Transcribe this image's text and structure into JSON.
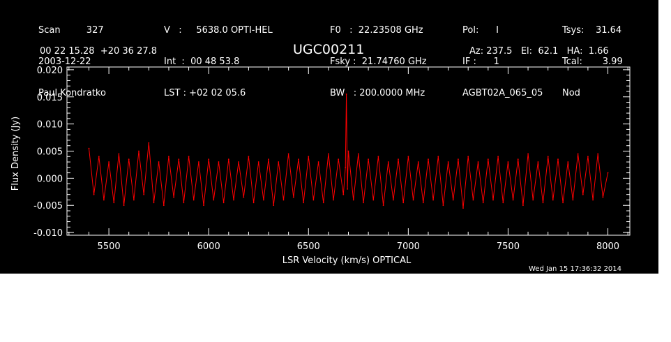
{
  "header": {
    "col1": [
      "Scan         327",
      "2003-12-22",
      "Paul Kondratko"
    ],
    "col2": [
      "V   :     5638.0 OPTI-HEL",
      "Int  :  00 48 53.8",
      "LST : +02 02 05.6"
    ],
    "col3": [
      "F0   :  22.23508 GHz",
      "Fsky :  21.74760 GHz",
      "BW   : 200.0000 MHz"
    ],
    "col4": [
      "Pol:      I",
      "IF :      1",
      "AGBT02A_065_05"
    ],
    "col5": [
      "Tsys:    31.64",
      "Tcal:       3.99",
      "Nod"
    ],
    "coords": "00 22 15.28  +20 36 27.8",
    "object": "UGC00211",
    "pointing": "Az: 237.5   El:  62.1   HA:  1.66"
  },
  "footer": {
    "timestamp": "Wed Jan 15 17:36:32 2014"
  },
  "colors": {
    "background": "#000000",
    "axes": "#ffffff",
    "series": "#ff0000"
  },
  "chart_data": {
    "type": "line",
    "title": "UGC00211",
    "xlabel": "LSR Velocity (km/s) OPTICAL",
    "ylabel": "Flux Density (Jy)",
    "xlim": [
      5290,
      8110
    ],
    "ylim": [
      -0.0105,
      0.0205
    ],
    "xticks": [
      5500,
      6000,
      6500,
      7000,
      7500,
      8000
    ],
    "xtick_labels": [
      "5500",
      "6000",
      "6500",
      "7000",
      "7500",
      "8000"
    ],
    "yticks": [
      -0.01,
      -0.005,
      0.0,
      0.005,
      0.01,
      0.015,
      0.02
    ],
    "ytick_labels": [
      "-0.010",
      "-0.005",
      "0.000",
      "0.005",
      "0.010",
      "0.015",
      "0.020"
    ],
    "grid": false,
    "series": [
      {
        "color": "#ff0000",
        "x": [
          5400,
          5425,
          5450,
          5475,
          5500,
          5525,
          5550,
          5575,
          5600,
          5625,
          5650,
          5675,
          5700,
          5725,
          5750,
          5775,
          5800,
          5825,
          5850,
          5875,
          5900,
          5925,
          5950,
          5975,
          6000,
          6025,
          6050,
          6075,
          6100,
          6125,
          6150,
          6175,
          6200,
          6225,
          6250,
          6275,
          6300,
          6325,
          6350,
          6375,
          6400,
          6425,
          6450,
          6475,
          6500,
          6525,
          6550,
          6575,
          6600,
          6625,
          6650,
          6675,
          6685,
          6690,
          6695,
          6700,
          6725,
          6750,
          6775,
          6800,
          6825,
          6850,
          6875,
          6900,
          6925,
          6950,
          6975,
          7000,
          7025,
          7050,
          7075,
          7100,
          7125,
          7150,
          7175,
          7200,
          7225,
          7250,
          7275,
          7300,
          7325,
          7350,
          7375,
          7400,
          7425,
          7450,
          7475,
          7500,
          7525,
          7550,
          7575,
          7600,
          7625,
          7650,
          7675,
          7700,
          7725,
          7750,
          7775,
          7800,
          7825,
          7850,
          7875,
          7900,
          7925,
          7950,
          7975,
          8000
        ],
        "y": [
          0.0055,
          -0.003,
          0.004,
          -0.004,
          0.003,
          -0.0045,
          0.0045,
          -0.005,
          0.0035,
          -0.004,
          0.005,
          -0.003,
          0.0065,
          -0.0045,
          0.003,
          -0.005,
          0.004,
          -0.0035,
          0.0035,
          -0.0045,
          0.004,
          -0.004,
          0.003,
          -0.005,
          0.0035,
          -0.004,
          0.003,
          -0.0045,
          0.0035,
          -0.004,
          0.003,
          -0.0035,
          0.004,
          -0.0045,
          0.003,
          -0.004,
          0.0035,
          -0.005,
          0.003,
          -0.004,
          0.0045,
          -0.0035,
          0.0035,
          -0.0045,
          0.004,
          -0.004,
          0.003,
          -0.0045,
          0.0045,
          -0.004,
          0.0035,
          -0.003,
          0.002,
          0.0155,
          -0.002,
          0.005,
          -0.004,
          0.0045,
          -0.0045,
          0.0035,
          -0.004,
          0.004,
          -0.005,
          0.003,
          -0.004,
          0.0035,
          -0.0045,
          0.004,
          -0.004,
          0.003,
          -0.0045,
          0.0035,
          -0.004,
          0.004,
          -0.005,
          0.003,
          -0.004,
          0.0035,
          -0.0055,
          0.004,
          -0.004,
          0.003,
          -0.0045,
          0.0035,
          -0.004,
          0.004,
          -0.0045,
          0.003,
          -0.004,
          0.0035,
          -0.005,
          0.0045,
          -0.004,
          0.003,
          -0.0045,
          0.004,
          -0.004,
          0.0035,
          -0.0045,
          0.003,
          -0.004,
          0.0045,
          -0.003,
          0.004,
          -0.004,
          0.0045,
          -0.0035,
          0.001
        ]
      }
    ]
  }
}
